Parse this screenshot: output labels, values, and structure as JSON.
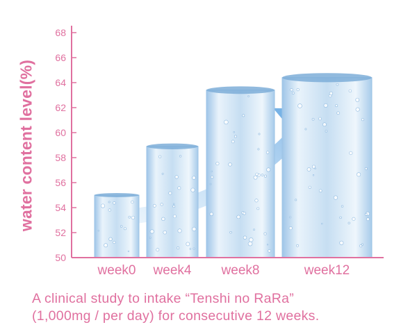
{
  "chart_data": {
    "type": "bar",
    "categories": [
      "week0",
      "week4",
      "week8",
      "week12"
    ],
    "values": [
      55.0,
      58.9,
      63.4,
      64.4
    ],
    "ylabel": "water content level(%)",
    "xlabel": "",
    "yticks": [
      50,
      52,
      54,
      56,
      58,
      60,
      62,
      64,
      66,
      68
    ],
    "ylim": [
      50,
      68
    ],
    "grid": false,
    "colors": {
      "axis": "#e0709f",
      "text": "#e0709f",
      "bar_light": "#eaf3fb",
      "bar_mid": "#b9d6ef",
      "arrow": "#4a9ee0"
    }
  },
  "caption": {
    "line1": "A clinical study to intake “Tenshi no RaRa”",
    "line2": "(1,000mg / per day) for consecutive 12 weeks."
  }
}
